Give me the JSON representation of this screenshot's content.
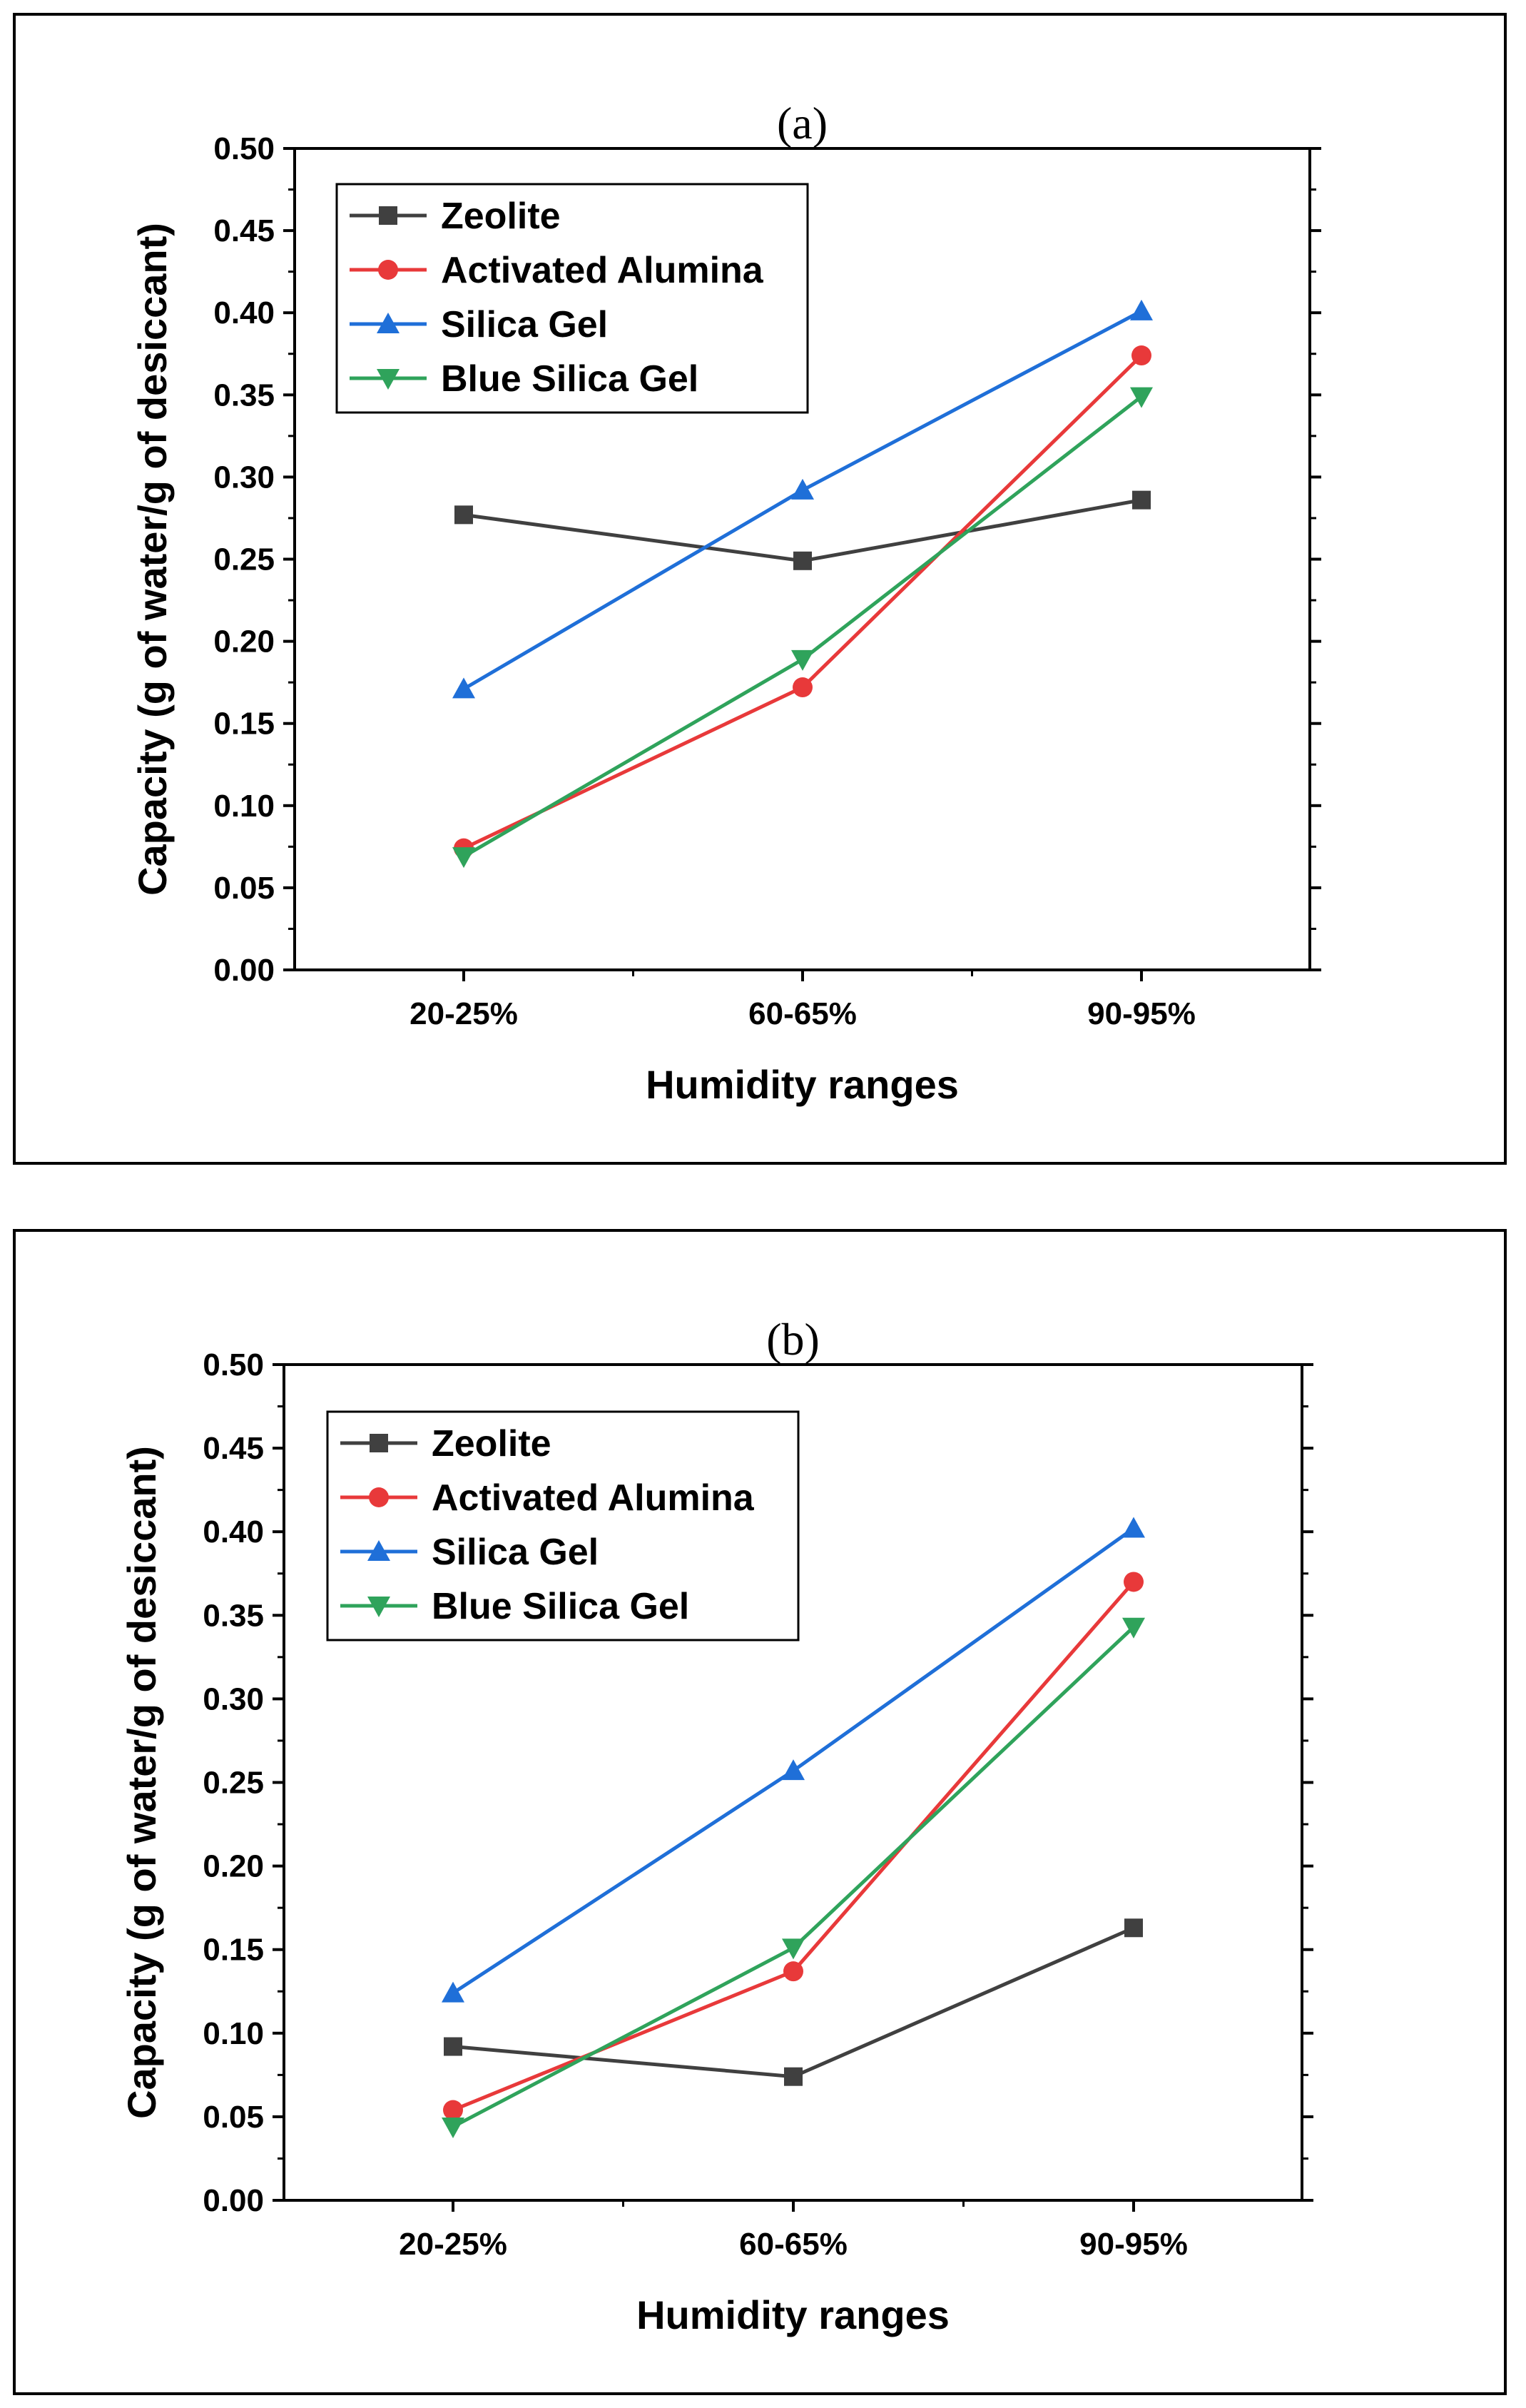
{
  "chart_data": [
    {
      "type": "line",
      "title": "(a)",
      "xlabel": "Humidity ranges",
      "ylabel": "Capacity (g of water/g of desiccant)",
      "categories": [
        "20-25%",
        "60-65%",
        "90-95%"
      ],
      "ylim": [
        0,
        0.5
      ],
      "yticks": [
        "0.00",
        "0.05",
        "0.10",
        "0.15",
        "0.20",
        "0.25",
        "0.30",
        "0.35",
        "0.40",
        "0.45",
        "0.50"
      ],
      "legend": "top-left",
      "series": [
        {
          "name": "Zeolite",
          "color": "#404040",
          "marker": "square",
          "values": [
            0.277,
            0.249,
            0.286
          ]
        },
        {
          "name": "Activated Alumina",
          "color": "#e8393a",
          "marker": "circle",
          "values": [
            0.074,
            0.172,
            0.374
          ]
        },
        {
          "name": "Silica Gel",
          "color": "#1f6fd8",
          "marker": "triangle-up",
          "values": [
            0.171,
            0.292,
            0.401
          ]
        },
        {
          "name": "Blue Silica Gel",
          "color": "#2fa35b",
          "marker": "triangle-down",
          "values": [
            0.069,
            0.189,
            0.349
          ]
        }
      ]
    },
    {
      "type": "line",
      "title": "(b)",
      "xlabel": "Humidity ranges",
      "ylabel": "Capacity (g of water/g of desiccant)",
      "categories": [
        "20-25%",
        "60-65%",
        "90-95%"
      ],
      "ylim": [
        0,
        0.5
      ],
      "yticks": [
        "0.00",
        "0.05",
        "0.10",
        "0.15",
        "0.20",
        "0.25",
        "0.30",
        "0.35",
        "0.40",
        "0.45",
        "0.50"
      ],
      "legend": "top-left",
      "series": [
        {
          "name": "Zeolite",
          "color": "#404040",
          "marker": "square",
          "values": [
            0.092,
            0.074,
            0.163
          ]
        },
        {
          "name": "Activated Alumina",
          "color": "#e8393a",
          "marker": "circle",
          "values": [
            0.054,
            0.137,
            0.37
          ]
        },
        {
          "name": "Silica Gel",
          "color": "#1f6fd8",
          "marker": "triangle-up",
          "values": [
            0.124,
            0.257,
            0.402
          ]
        },
        {
          "name": "Blue Silica Gel",
          "color": "#2fa35b",
          "marker": "triangle-down",
          "values": [
            0.044,
            0.151,
            0.343
          ]
        }
      ]
    }
  ]
}
